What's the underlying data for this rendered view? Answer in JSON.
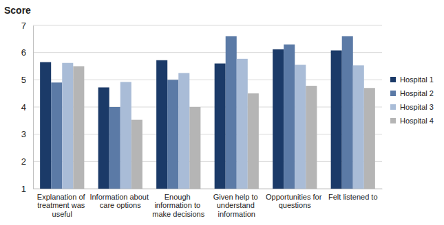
{
  "chart_data": {
    "type": "bar",
    "y_label": "Score",
    "categories": [
      "Explanation of treatment was useful",
      "Information about care options",
      "Enough information to make decisions",
      "Given help to understand information",
      "Opportunities for questions",
      "Felt listened to"
    ],
    "series": [
      {
        "name": "Hospital 1",
        "color": "#1b3a68",
        "values": [
          5.65,
          4.72,
          5.72,
          5.6,
          6.12,
          6.08
        ]
      },
      {
        "name": "Hospital 2",
        "color": "#5b7aa6",
        "values": [
          4.9,
          4.0,
          5.0,
          6.6,
          6.3,
          6.6
        ]
      },
      {
        "name": "Hospital 3",
        "color": "#a9bcd7",
        "values": [
          5.62,
          4.92,
          5.25,
          5.77,
          5.55,
          5.53
        ]
      },
      {
        "name": "Hospital 4",
        "color": "#b5b5b5",
        "values": [
          5.5,
          3.53,
          4.0,
          4.5,
          4.78,
          4.7
        ]
      }
    ],
    "ylim": [
      1,
      7
    ],
    "yticks": [
      1,
      2,
      3,
      4,
      5,
      6,
      7
    ],
    "grid": true,
    "legend": "right"
  }
}
